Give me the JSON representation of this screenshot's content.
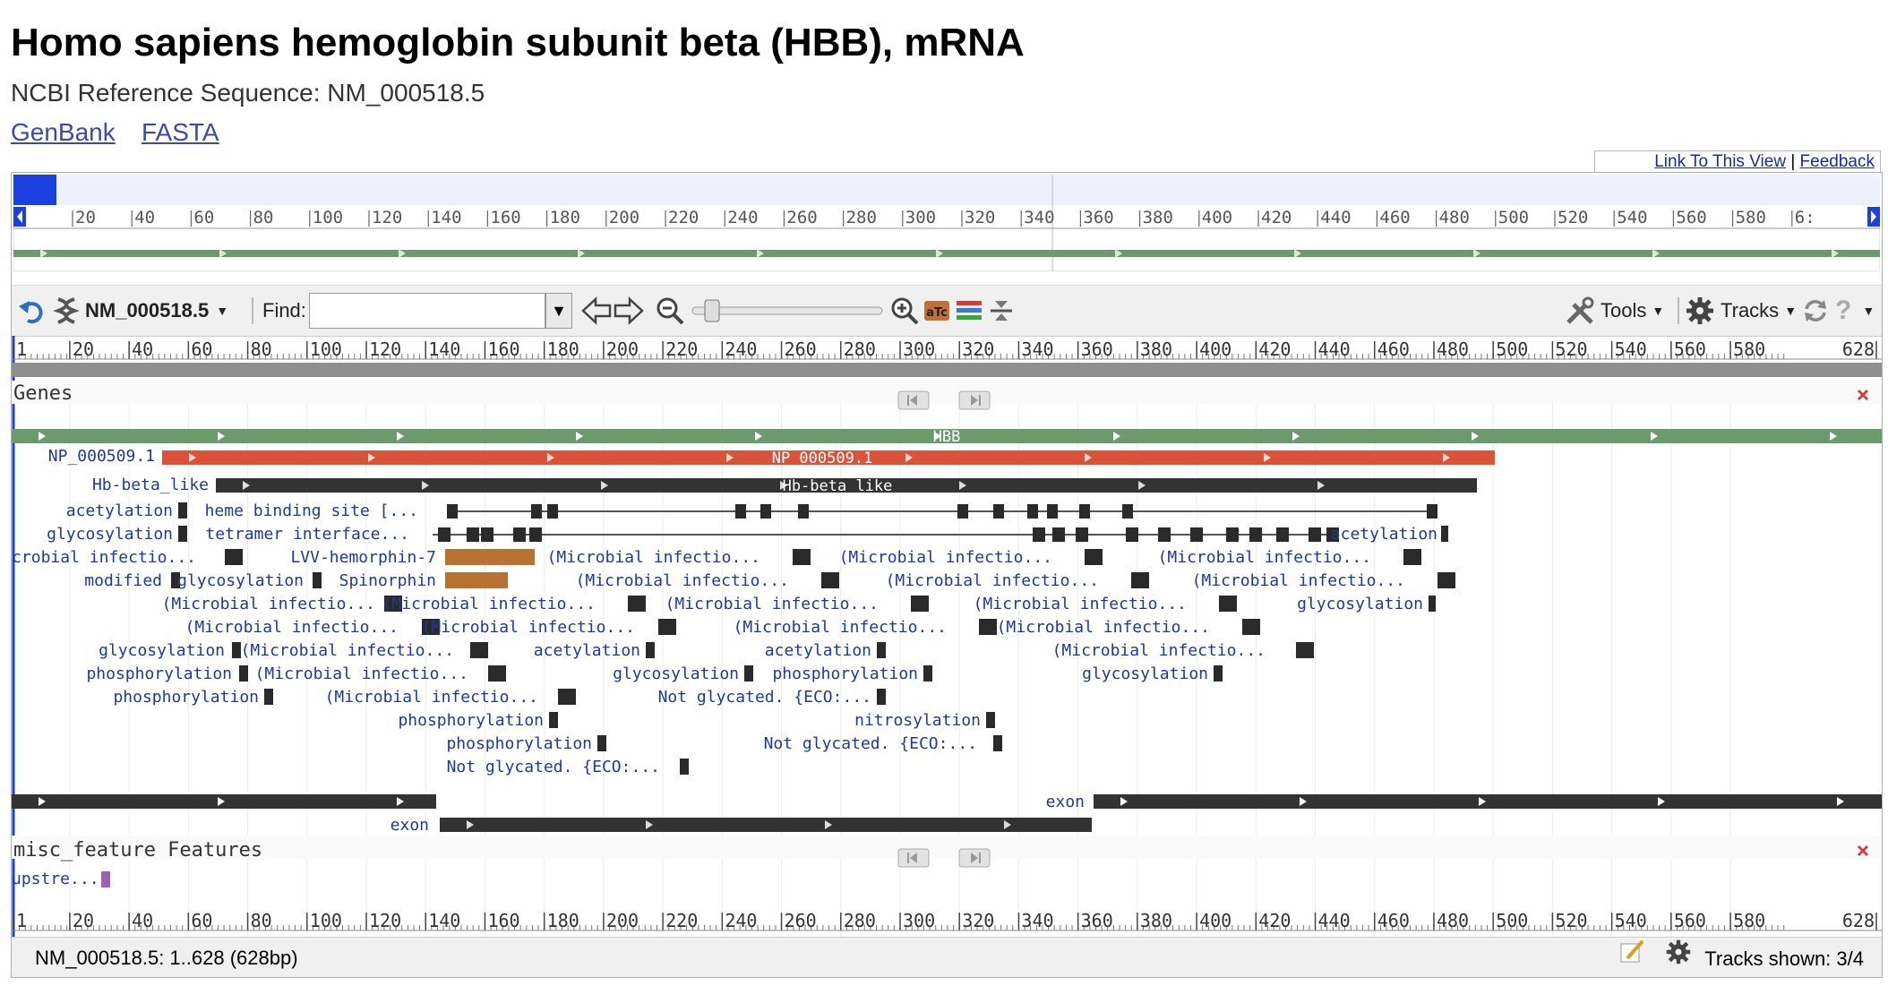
{
  "header": {
    "title": "Homo sapiens hemoglobin subunit beta (HBB), mRNA",
    "ref_label": "NCBI Reference Sequence: NM_000518.5",
    "links": [
      "GenBank",
      "FASTA"
    ]
  },
  "viewer": {
    "link_to_view": "Link To This View",
    "separator": "|",
    "feedback": "Feedback",
    "sequence_id": "NM_000518.5",
    "find_label": "Find:",
    "find_value": "",
    "tools_label": "Tools",
    "tracks_label": "Tracks",
    "ruler_ticks": [
      "1",
      "20",
      "40",
      "60",
      "80",
      "100",
      "120",
      "140",
      "160",
      "180",
      "200",
      "220",
      "240",
      "260",
      "280",
      "300",
      "320",
      "340",
      "360",
      "380",
      "400",
      "420",
      "440",
      "460",
      "480",
      "500",
      "520",
      "540",
      "560",
      "580",
      "628"
    ],
    "overview_ticks": [
      "20",
      "40",
      "60",
      "80",
      "100",
      "120",
      "140",
      "160",
      "180",
      "200",
      "220",
      "240",
      "260",
      "280",
      "300",
      "320",
      "340",
      "360",
      "380",
      "400",
      "420",
      "440",
      "460",
      "480",
      "500",
      "520",
      "540",
      "560",
      "580",
      "6:"
    ],
    "status_text": "NM_000518.5: 1..628 (628bp)",
    "tracks_shown": "Tracks shown: 3/4",
    "genes_track": {
      "title": "Genes",
      "gene_label": "HBB",
      "protein_label": "NP_000509.1",
      "protein_label_inner": "NP_000509.1",
      "domain_label": "Hb-beta_like",
      "domain_label_inner": "Hb-beta_like",
      "exon_label": "exon",
      "features": [
        {
          "label": "acetylation"
        },
        {
          "label": "glycosylation"
        },
        {
          "label": "heme binding site [..."
        },
        {
          "label": "tetramer interface..."
        },
        {
          "label": "acetylation"
        },
        {
          "label": "(Microbial infectio..."
        },
        {
          "label": "LVV-hemorphin-7"
        },
        {
          "label": "(Microbial infectio..."
        },
        {
          "label": "(Microbial infectio..."
        },
        {
          "label": "(Microbial infectio..."
        },
        {
          "label": "modified"
        },
        {
          "label": "glycosylation"
        },
        {
          "label": "Spinorphin"
        },
        {
          "label": "(Microbial infectio..."
        },
        {
          "label": "(Microbial infectio..."
        },
        {
          "label": "(Microbial infectio..."
        },
        {
          "label": "(Microbial infectio..."
        },
        {
          "label": "(Microbial infectio..."
        },
        {
          "label": "(Microbial infectio..."
        },
        {
          "label": "(Microbial infectio..."
        },
        {
          "label": "glycosylation"
        },
        {
          "label": "(Microbial infectio..."
        },
        {
          "label": "(Microbial infectio..."
        },
        {
          "label": "(Microbial infectio..."
        },
        {
          "label": "(Microbial infectio..."
        },
        {
          "label": "glycosylation"
        },
        {
          "label": "(Microbial infectio..."
        },
        {
          "label": "acetylation"
        },
        {
          "label": "acetylation"
        },
        {
          "label": "(Microbial infectio..."
        },
        {
          "label": "phosphorylation"
        },
        {
          "label": "(Microbial infectio..."
        },
        {
          "label": "glycosylation"
        },
        {
          "label": "phosphorylation"
        },
        {
          "label": "glycosylation"
        },
        {
          "label": "phosphorylation"
        },
        {
          "label": "(Microbial infectio..."
        },
        {
          "label": "Not glycated. {ECO:..."
        },
        {
          "label": "phosphorylation"
        },
        {
          "label": "nitrosylation"
        },
        {
          "label": "phosphorylation"
        },
        {
          "label": "Not glycated. {ECO:..."
        },
        {
          "label": "Not glycated. {ECO:..."
        }
      ]
    },
    "misc_track": {
      "title": "misc_feature Features",
      "feature_label": "upstre..."
    }
  },
  "colors": {
    "gene_green": "#6a9a6e",
    "protein_red": "#d9533a",
    "domain_black": "#333333",
    "brown": "#b87333",
    "feature_text": "#1f3a93",
    "purple": "#a35fb5",
    "close_red": "#d04040",
    "overview_blue": "#1c3fe0"
  }
}
